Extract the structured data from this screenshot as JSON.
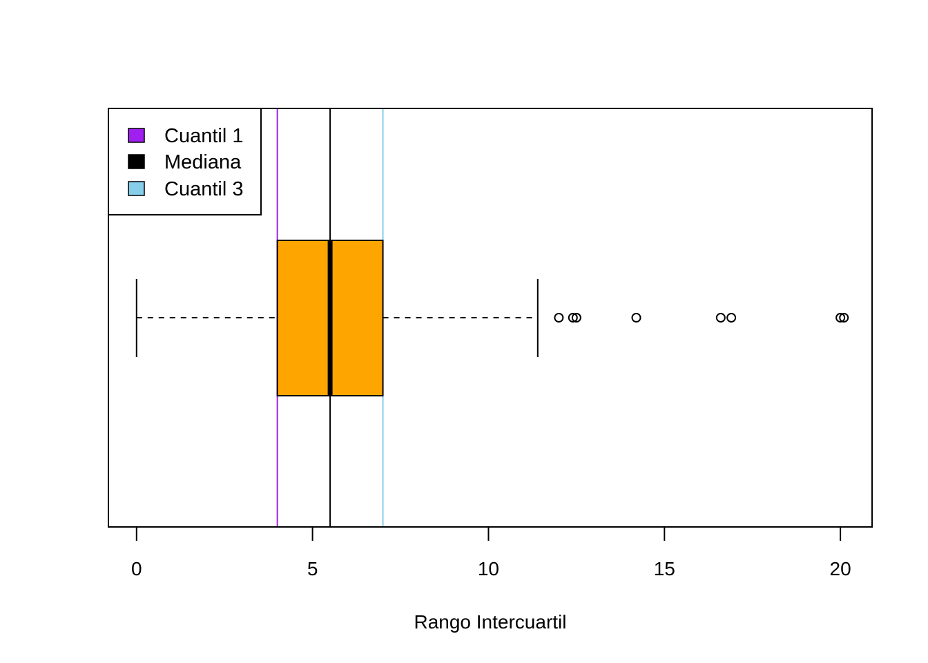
{
  "chart_data": {
    "type": "boxplot",
    "orientation": "horizontal",
    "title": "",
    "xlabel": "Rango Intercuartil",
    "ylabel": "",
    "xlim": [
      -0.8,
      20.9
    ],
    "x_ticks": [
      0,
      5,
      10,
      15,
      20
    ],
    "x_tick_labels": [
      "0",
      "5",
      "10",
      "15",
      "20"
    ],
    "box": {
      "whisker_low": 0,
      "q1": 4.0,
      "median": 5.5,
      "q3": 7.0,
      "whisker_high": 11.4,
      "outliers": [
        12.0,
        12.4,
        12.5,
        14.2,
        16.6,
        16.9,
        20.0,
        20.1
      ],
      "fill": "#FFA500"
    },
    "reference_lines": [
      {
        "name": "Cuantil 1",
        "x": 4.0,
        "color": "#A020F0"
      },
      {
        "name": "Mediana",
        "x": 5.5,
        "color": "#000000"
      },
      {
        "name": "Cuantil 3",
        "x": 7.0,
        "color": "#87CEEB"
      }
    ],
    "legend": {
      "position": "top-left",
      "entries": [
        {
          "label": "Cuantil 1",
          "color": "#A020F0"
        },
        {
          "label": "Mediana",
          "color": "#000000"
        },
        {
          "label": "Cuantil 3",
          "color": "#87CEEB"
        }
      ]
    },
    "grid": false
  }
}
